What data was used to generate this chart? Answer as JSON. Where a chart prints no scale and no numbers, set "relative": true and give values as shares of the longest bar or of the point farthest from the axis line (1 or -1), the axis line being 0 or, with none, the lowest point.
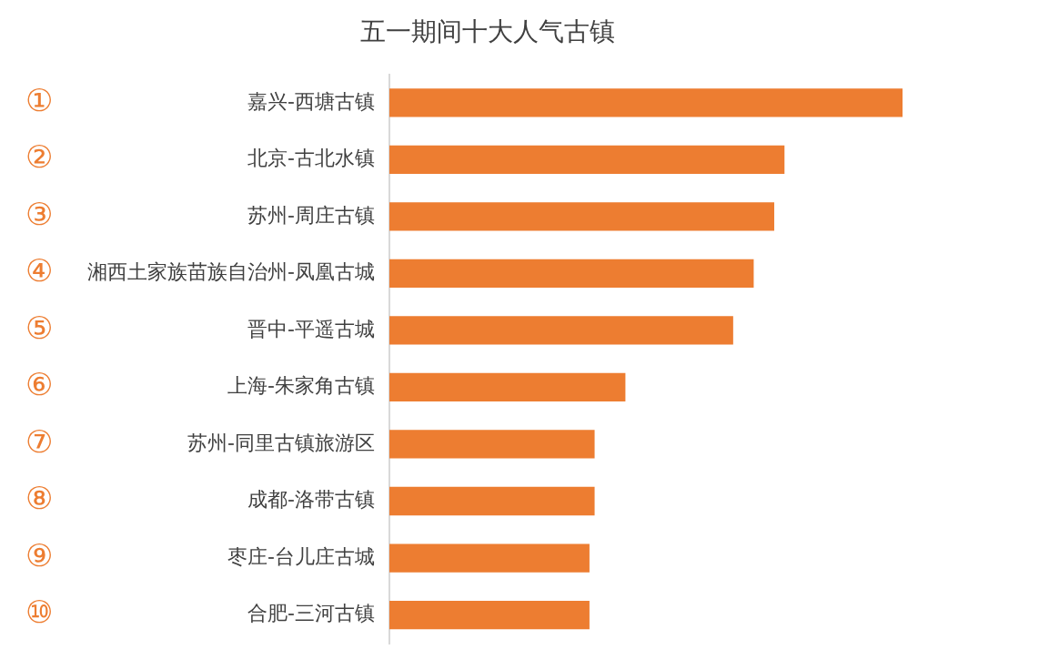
{
  "chart_data": {
    "type": "bar",
    "orientation": "horizontal",
    "relative": true,
    "title": "五一期间十大人气古镇",
    "categories": [
      "嘉兴-西塘古镇",
      "北京-古北水镇",
      "苏州-周庄古镇",
      "湘西土家族苗族自治州-凤凰古城",
      "晋中-平遥古城",
      "上海-朱家角古镇",
      "苏州-同里古镇旅游区",
      "成都-洛带古镇",
      "枣庄-台儿庄古城",
      "合肥-三河古镇"
    ],
    "values": [
      1,
      0.77,
      0.75,
      0.71,
      0.67,
      0.46,
      0.4,
      0.4,
      0.39,
      0.39
    ],
    "color": "#ed7d31",
    "annotations": [
      "①",
      "②",
      "③",
      "④",
      "⑤",
      "⑥",
      "⑦",
      "⑧",
      "⑨",
      "⑩"
    ],
    "legend": false
  }
}
